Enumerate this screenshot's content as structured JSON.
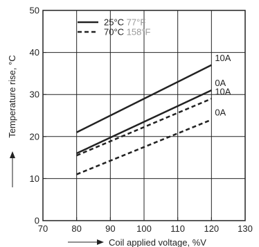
{
  "chart_data": {
    "type": "line",
    "xlabel": "Coil applied voltage, %V",
    "ylabel": "Temperature rise, °C",
    "xlim": [
      70,
      130
    ],
    "ylim": [
      0,
      50
    ],
    "x_ticks": [
      70,
      80,
      90,
      100,
      110,
      120,
      130
    ],
    "y_ticks": [
      0,
      10,
      20,
      30,
      40,
      50
    ],
    "grid": true,
    "legend_position": "top-left",
    "legend": [
      {
        "style": "solid",
        "label": "25°C",
        "alt_label": "77°F"
      },
      {
        "style": "dashed",
        "label": "70°C",
        "alt_label": "158°F"
      }
    ],
    "series": [
      {
        "style": "solid",
        "end_label": "10A",
        "x": [
          80,
          120
        ],
        "y": [
          21,
          37
        ]
      },
      {
        "style": "solid",
        "end_label": "0A",
        "x": [
          80,
          120
        ],
        "y": [
          16,
          31
        ]
      },
      {
        "style": "dashed",
        "end_label": "10A",
        "x": [
          80,
          120
        ],
        "y": [
          15.5,
          29
        ]
      },
      {
        "style": "dashed",
        "end_label": "0A",
        "x": [
          80,
          120
        ],
        "y": [
          11,
          24
        ]
      }
    ],
    "colors": {
      "line": "#222222",
      "grid": "#222222",
      "alt_text": "#9a9a9a"
    }
  }
}
